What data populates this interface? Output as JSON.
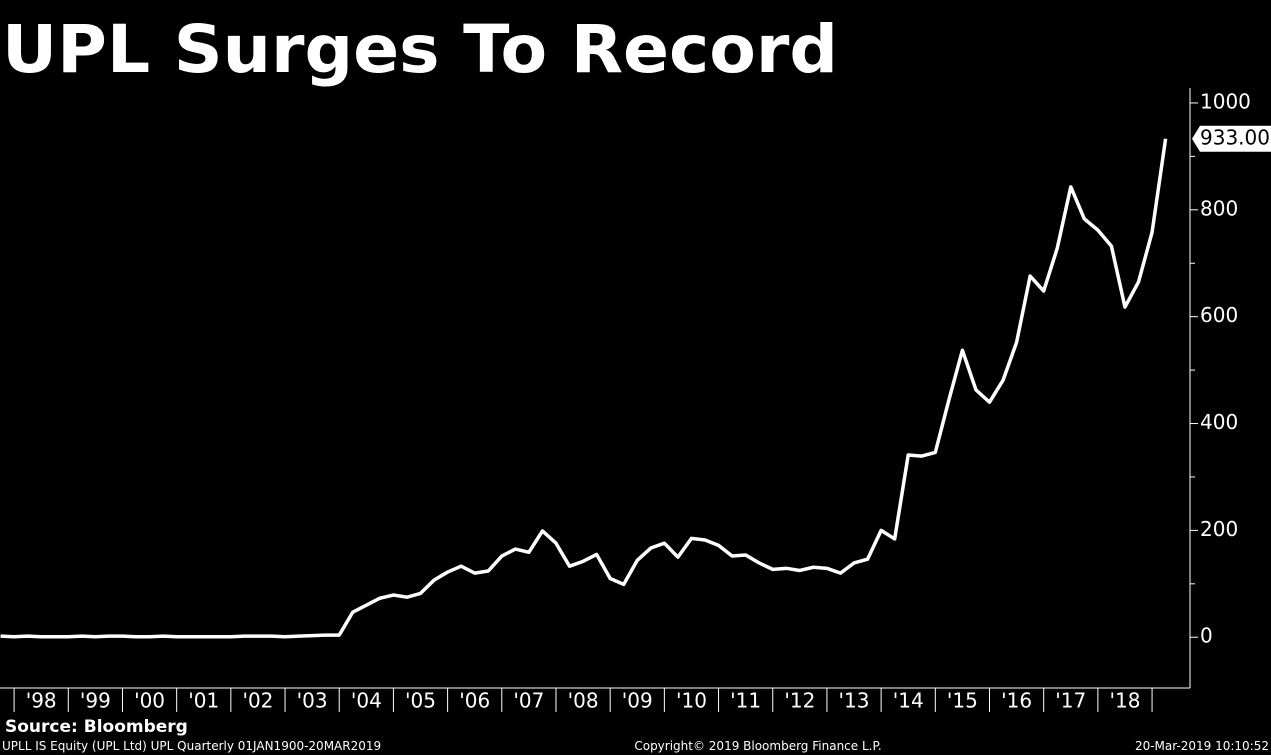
{
  "chart_data": {
    "type": "line",
    "title": "UPL Surges To Record",
    "source": "Source: Bloomberg",
    "footer_left": "UPLL IS Equity (UPL Ltd) UPL  Quarterly 01JAN1900-20MAR2019",
    "footer_center": "Copyright© 2019 Bloomberg Finance L.P.",
    "footer_right": "20-Mar-2019 10:10:52",
    "color": "#ffffff",
    "last_value_label": "933.00",
    "x": [
      1997.75,
      1998,
      1998.25,
      1998.5,
      1998.75,
      1999,
      1999.25,
      1999.5,
      1999.75,
      2000,
      2000.25,
      2000.5,
      2000.75,
      2001,
      2001.25,
      2001.5,
      2001.75,
      2002,
      2002.25,
      2002.5,
      2002.75,
      2003,
      2003.25,
      2003.5,
      2003.75,
      2004,
      2004.25,
      2004.5,
      2004.75,
      2005,
      2005.25,
      2005.5,
      2005.75,
      2006,
      2006.25,
      2006.5,
      2006.75,
      2007,
      2007.25,
      2007.5,
      2007.75,
      2008,
      2008.25,
      2008.5,
      2008.75,
      2009,
      2009.25,
      2009.5,
      2009.75,
      2010,
      2010.25,
      2010.5,
      2010.75,
      2011,
      2011.25,
      2011.5,
      2011.75,
      2012,
      2012.25,
      2012.5,
      2012.75,
      2013,
      2013.25,
      2013.5,
      2013.75,
      2014,
      2014.25,
      2014.5,
      2014.75,
      2015,
      2015.25,
      2015.5,
      2015.75,
      2016,
      2016.25,
      2016.5,
      2016.75,
      2017,
      2017.25,
      2017.5,
      2017.75,
      2018,
      2018.25,
      2018.5,
      2018.75,
      2019,
      2019.25
    ],
    "values": [
      2,
      1,
      2,
      1,
      1,
      1,
      2,
      1,
      2,
      2,
      1,
      1,
      2,
      1,
      1,
      1,
      1,
      1,
      2,
      2,
      2,
      1,
      2,
      3,
      4,
      4,
      47,
      60,
      73,
      79,
      75,
      82,
      107,
      122,
      133,
      120,
      124,
      152,
      165,
      159,
      199,
      176,
      133,
      142,
      155,
      110,
      99,
      144,
      167,
      176,
      150,
      185,
      182,
      172,
      152,
      154,
      139,
      127,
      129,
      125,
      131,
      129,
      120,
      139,
      146,
      200,
      184,
      341,
      339,
      346,
      444,
      537,
      463,
      440,
      481,
      552,
      676,
      648,
      728,
      843,
      783,
      762,
      732,
      618,
      665,
      758,
      933
    ],
    "xlim": [
      1997.74,
      2019.7
    ],
    "xticks": [
      1998,
      1999,
      2000,
      2001,
      2002,
      2003,
      2004,
      2005,
      2006,
      2007,
      2008,
      2009,
      2010,
      2011,
      2012,
      2013,
      2014,
      2015,
      2016,
      2017,
      2018,
      2019
    ],
    "xtick_labels": [
      {
        "value": 1998.5,
        "label": "'98"
      },
      {
        "value": 1999.5,
        "label": "'99"
      },
      {
        "value": 2000.5,
        "label": "'00"
      },
      {
        "value": 2001.5,
        "label": "'01"
      },
      {
        "value": 2002.5,
        "label": "'02"
      },
      {
        "value": 2003.5,
        "label": "'03"
      },
      {
        "value": 2004.5,
        "label": "'04"
      },
      {
        "value": 2005.5,
        "label": "'05"
      },
      {
        "value": 2006.5,
        "label": "'06"
      },
      {
        "value": 2007.5,
        "label": "'07"
      },
      {
        "value": 2008.5,
        "label": "'08"
      },
      {
        "value": 2009.5,
        "label": "'09"
      },
      {
        "value": 2010.5,
        "label": "'10"
      },
      {
        "value": 2011.5,
        "label": "'11"
      },
      {
        "value": 2012.5,
        "label": "'12"
      },
      {
        "value": 2013.5,
        "label": "'13"
      },
      {
        "value": 2014.5,
        "label": "'14"
      },
      {
        "value": 2015.5,
        "label": "'15"
      },
      {
        "value": 2016.5,
        "label": "'16"
      },
      {
        "value": 2017.5,
        "label": "'17"
      },
      {
        "value": 2018.5,
        "label": "'18"
      }
    ],
    "ylim": [
      -95,
      1028
    ],
    "yticks": [
      0,
      200,
      400,
      600,
      800,
      1000
    ],
    "yminor": [
      100,
      300,
      500,
      700,
      900
    ]
  }
}
